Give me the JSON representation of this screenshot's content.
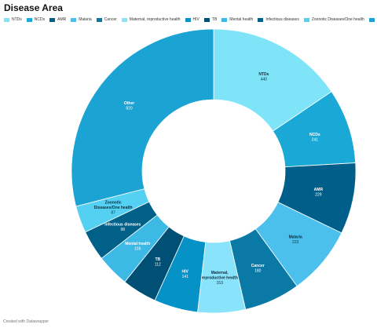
{
  "title": "Disease Area",
  "footer": "Created with Datawrapper",
  "chart_data": {
    "type": "pie",
    "donut": true,
    "title": "Disease Area",
    "legend_position": "top",
    "categories": [
      "NTDs",
      "NCDs",
      "AMR",
      "Malaria",
      "Cancer",
      "Maternal, reproductive health",
      "HIV",
      "TB",
      "Mental health",
      "Infectious diseases",
      "Zoonotic Diseases/One health",
      "Other"
    ],
    "values": [
      440,
      241,
      229,
      222,
      180,
      153,
      141,
      112,
      105,
      98,
      87,
      820
    ],
    "value_labels": [
      "440",
      "241",
      "229",
      "222",
      "180",
      "153",
      "141",
      "112",
      "105",
      "98",
      "87",
      "820"
    ],
    "slice_labels": [
      [
        "NTDs"
      ],
      [
        "NCDs"
      ],
      [
        "AMR"
      ],
      [
        "Malaria"
      ],
      [
        "Cancer"
      ],
      [
        "Maternal,",
        "reproductive health"
      ],
      [
        "HIV"
      ],
      [
        "TB"
      ],
      [
        "Mental health"
      ],
      [
        "Infectious diseases"
      ],
      [
        "Zoonotic",
        "Diseases/One health"
      ],
      [
        "Other"
      ]
    ],
    "colors": [
      "#7fe4f8",
      "#1aa9d7",
      "#005f8a",
      "#4cc0ec",
      "#0a79a6",
      "#88e3fb",
      "#0692c7",
      "#005075",
      "#3db9e6",
      "#006088",
      "#54d1f2",
      "#1aa3d3"
    ],
    "label_colors": [
      "#0b2f40",
      "#ffffff",
      "#ffffff",
      "#0b2f40",
      "#ffffff",
      "#0b2f40",
      "#ffffff",
      "#ffffff",
      "#ffffff",
      "#ffffff",
      "#0b2f40",
      "#ffffff"
    ]
  }
}
